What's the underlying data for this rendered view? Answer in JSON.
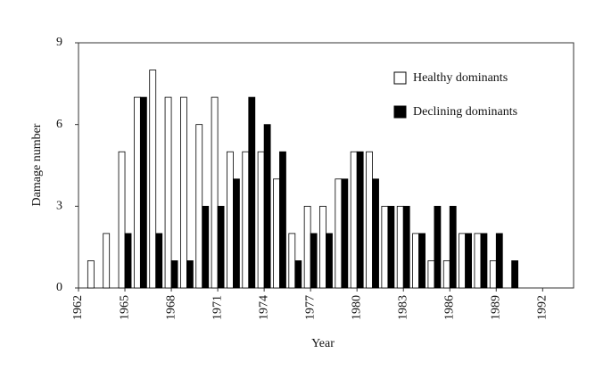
{
  "chart_data": {
    "type": "bar",
    "x_label": "Year",
    "y_label": "Damage number",
    "x": [
      1963,
      1964,
      1965,
      1966,
      1967,
      1968,
      1969,
      1970,
      1971,
      1972,
      1973,
      1974,
      1975,
      1976,
      1977,
      1978,
      1979,
      1980,
      1981,
      1982,
      1983,
      1984,
      1985,
      1986,
      1987,
      1988,
      1989,
      1990
    ],
    "series": [
      {
        "name": "Healthy dominants",
        "color": "#ffffff",
        "values": [
          1,
          2,
          5,
          7,
          8,
          7,
          7,
          6,
          7,
          5,
          5,
          5,
          4,
          2,
          3,
          3,
          4,
          5,
          5,
          3,
          3,
          2,
          1,
          1,
          2,
          2,
          1,
          0
        ]
      },
      {
        "name": "Declining dominants",
        "color": "#000000",
        "values": [
          0,
          0,
          2,
          7,
          2,
          1,
          1,
          3,
          3,
          4,
          7,
          6,
          5,
          1,
          2,
          2,
          4,
          5,
          4,
          3,
          3,
          2,
          3,
          3,
          2,
          2,
          2,
          1
        ]
      }
    ],
    "xlim": [
      1962,
      1994
    ],
    "xticks": [
      1962,
      1965,
      1968,
      1971,
      1974,
      1977,
      1980,
      1983,
      1986,
      1989,
      1992
    ],
    "ylim": [
      0,
      9
    ],
    "yticks": [
      0,
      3,
      6,
      9
    ]
  }
}
